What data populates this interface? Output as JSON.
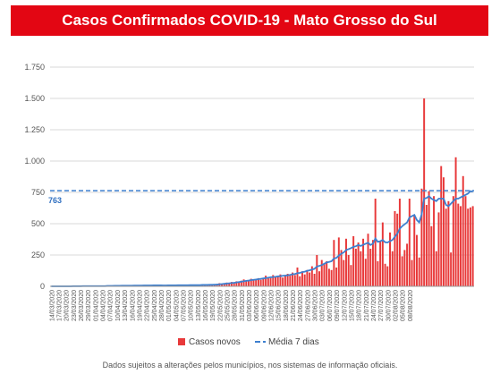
{
  "title": "Casos Confirmados COVID-19 - Mato Grosso do Sul",
  "footnote": "Dados sujeitos a alterações pelos municípios, nos sistemas de informação oficiais.",
  "colors": {
    "banner": "#e30613",
    "bars": "#e8393a",
    "avg_line": "#3d7fcf",
    "ref_line": "#3d7fcf",
    "ref_label": "#2f6fc0"
  },
  "chart_data": {
    "type": "bar",
    "title": "Casos Confirmados COVID-19 - Mato Grosso do Sul",
    "xlabel": "",
    "ylabel": "",
    "ylim": [
      0,
      1750
    ],
    "yticks": [
      0,
      250,
      500,
      750,
      1000,
      1250,
      1500,
      1750
    ],
    "ytick_labels": [
      "0",
      "250",
      "500",
      "750",
      "1.000",
      "1.250",
      "1.500",
      "1.750"
    ],
    "grid": true,
    "legend_position": "bottom",
    "start_date": "2020-03-14",
    "end_date": "2020-08-08",
    "xtick_labels": [
      "14/03/2020",
      "17/03/2020",
      "20/03/2020",
      "23/03/2020",
      "26/03/2020",
      "29/03/2020",
      "01/04/2020",
      "04/04/2020",
      "07/04/2020",
      "10/04/2020",
      "13/04/2020",
      "16/04/2020",
      "19/04/2020",
      "22/04/2020",
      "25/04/2020",
      "28/04/2020",
      "01/05/2020",
      "04/05/2020",
      "07/05/2020",
      "10/05/2020",
      "13/05/2020",
      "16/05/2020",
      "19/05/2020",
      "22/05/2020",
      "25/05/2020",
      "28/05/2020",
      "31/05/2020",
      "03/06/2020",
      "06/06/2020",
      "09/06/2020",
      "12/06/2020",
      "15/06/2020",
      "18/06/2020",
      "21/06/2020",
      "24/06/2020",
      "27/06/2020",
      "30/06/2020",
      "03/07/2020",
      "06/07/2020",
      "09/07/2020",
      "12/07/2020",
      "15/07/2020",
      "18/07/2020",
      "21/07/2020",
      "24/07/2020",
      "27/07/2020",
      "30/07/2020",
      "02/08/2020",
      "05/08/2020",
      "08/08/2020"
    ],
    "reference_line": {
      "value": 763,
      "label": "763"
    },
    "series": [
      {
        "name": "Casos novos",
        "type": "bar",
        "values": [
          0,
          0,
          0,
          0,
          0,
          0,
          0,
          0,
          0,
          0,
          2,
          1,
          3,
          2,
          1,
          2,
          3,
          1,
          2,
          1,
          2,
          4,
          3,
          5,
          3,
          6,
          4,
          5,
          3,
          8,
          6,
          5,
          7,
          4,
          9,
          6,
          5,
          8,
          7,
          10,
          6,
          9,
          8,
          11,
          7,
          6,
          9,
          5,
          12,
          8,
          6,
          7,
          10,
          9,
          8,
          11,
          7,
          13,
          9,
          12,
          10,
          8,
          11,
          14,
          9,
          12,
          18,
          15,
          20,
          25,
          18,
          22,
          30,
          28,
          35,
          32,
          40,
          38,
          45,
          55,
          42,
          48,
          60,
          50,
          58,
          65,
          52,
          62,
          85,
          70,
          65,
          90,
          75,
          80,
          95,
          70,
          88,
          100,
          85,
          110,
          90,
          150,
          80,
          120,
          95,
          130,
          110,
          160,
          100,
          250,
          120,
          210,
          180,
          200,
          140,
          130,
          370,
          150,
          390,
          290,
          210,
          380,
          250,
          170,
          400,
          300,
          350,
          280,
          380,
          220,
          420,
          300,
          370,
          700,
          200,
          360,
          510,
          180,
          160,
          430,
          280,
          600,
          580,
          700,
          240,
          290,
          340,
          700,
          210,
          570,
          410,
          230,
          780,
          1500,
          650,
          760,
          480,
          720,
          280,
          590,
          960,
          870,
          620,
          680,
          270,
          720,
          1030,
          660,
          640,
          880,
          720,
          620,
          630,
          640
        ]
      },
      {
        "name": "Média 7 dias",
        "type": "line",
        "values": [
          0,
          0,
          0,
          0,
          0,
          0,
          0,
          0,
          0,
          1,
          1,
          1,
          1,
          2,
          2,
          2,
          2,
          2,
          2,
          2,
          2,
          2,
          2,
          3,
          3,
          3,
          4,
          4,
          4,
          5,
          5,
          5,
          5,
          5,
          6,
          6,
          6,
          6,
          7,
          7,
          7,
          7,
          8,
          8,
          8,
          8,
          7,
          7,
          8,
          8,
          8,
          8,
          9,
          9,
          9,
          9,
          9,
          10,
          10,
          10,
          10,
          10,
          11,
          11,
          11,
          12,
          12,
          13,
          14,
          16,
          18,
          20,
          22,
          24,
          26,
          28,
          31,
          34,
          37,
          40,
          44,
          46,
          49,
          52,
          54,
          57,
          60,
          63,
          66,
          69,
          72,
          74,
          76,
          79,
          81,
          84,
          86,
          88,
          91,
          96,
          98,
          105,
          107,
          113,
          117,
          124,
          128,
          134,
          140,
          158,
          163,
          170,
          180,
          190,
          195,
          200,
          222,
          227,
          245,
          260,
          270,
          290,
          297,
          305,
          315,
          320,
          330,
          322,
          332,
          340,
          348,
          330,
          340,
          382,
          355,
          360,
          370,
          352,
          350,
          360,
          370,
          395,
          420,
          460,
          480,
          495,
          510,
          550,
          560,
          570,
          530,
          510,
          575,
          700,
          705,
          720,
          700,
          690,
          680,
          700,
          700,
          700,
          650,
          640,
          660,
          680,
          700,
          700,
          710,
          720,
          730,
          740,
          760,
          755
        ]
      }
    ]
  }
}
